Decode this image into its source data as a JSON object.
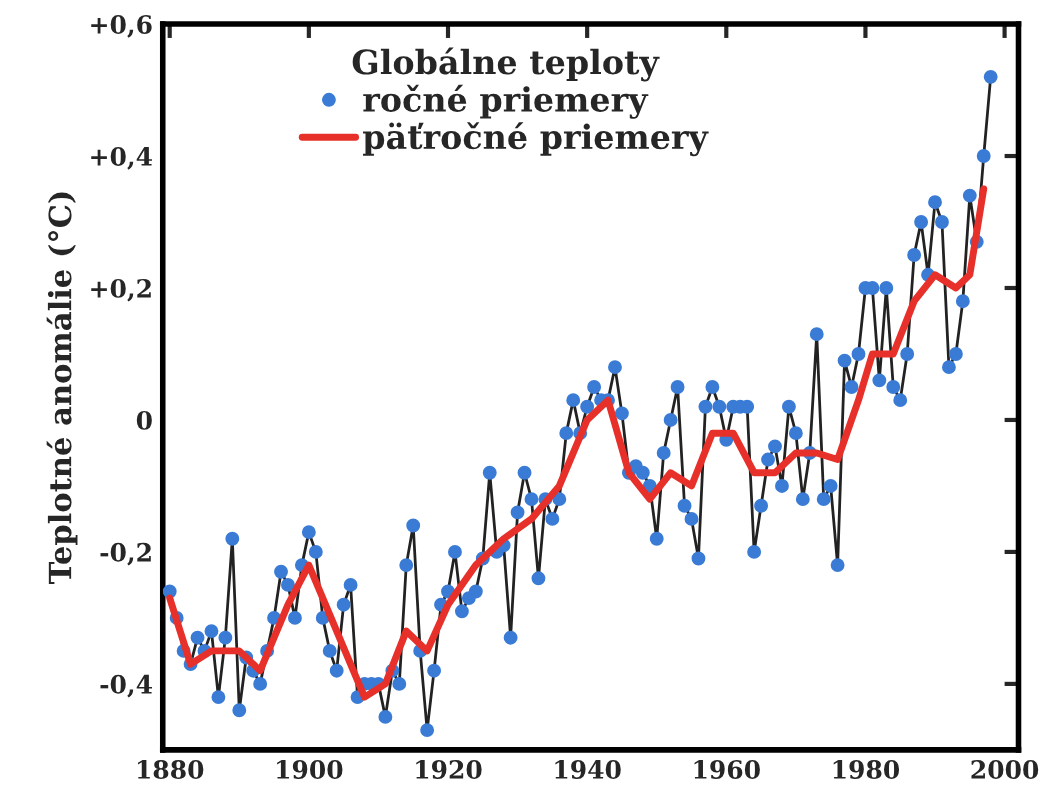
{
  "chart_data": {
    "type": "line",
    "legend_title": "Globálne teploty",
    "ylabel": "Teplotné anomálie (°C)",
    "xlim": [
      1879,
      2002
    ],
    "xticks": [
      1880,
      1900,
      1920,
      1940,
      1960,
      1980,
      2000
    ],
    "ylim": [
      -0.5,
      0.6
    ],
    "yticks": [
      {
        "value": 0.6,
        "label": "+0,6"
      },
      {
        "value": 0.4,
        "label": "+0,4"
      },
      {
        "value": 0.2,
        "label": "+0,2"
      },
      0,
      {
        "value": -0.2,
        "label": "-0,2"
      },
      {
        "value": -0.4,
        "label": "-0,4"
      }
    ],
    "grid": false,
    "legend": "top",
    "series": [
      {
        "name": "ročné priemery",
        "marker": "circle",
        "color": "#3a7bd5",
        "x": [
          1880,
          1881,
          1882,
          1883,
          1884,
          1885,
          1886,
          1887,
          1888,
          1889,
          1890,
          1891,
          1892,
          1893,
          1894,
          1895,
          1896,
          1897,
          1898,
          1899,
          1900,
          1901,
          1902,
          1903,
          1904,
          1905,
          1906,
          1907,
          1908,
          1909,
          1910,
          1911,
          1912,
          1913,
          1914,
          1915,
          1916,
          1917,
          1918,
          1919,
          1920,
          1921,
          1922,
          1923,
          1924,
          1925,
          1926,
          1927,
          1928,
          1929,
          1930,
          1931,
          1932,
          1933,
          1934,
          1935,
          1936,
          1937,
          1938,
          1939,
          1940,
          1941,
          1942,
          1943,
          1944,
          1945,
          1946,
          1947,
          1948,
          1949,
          1950,
          1951,
          1952,
          1953,
          1954,
          1955,
          1956,
          1957,
          1958,
          1959,
          1960,
          1961,
          1962,
          1963,
          1964,
          1965,
          1966,
          1967,
          1968,
          1969,
          1970,
          1971,
          1972,
          1973,
          1974,
          1975,
          1976,
          1977,
          1978,
          1979,
          1980,
          1981,
          1982,
          1983,
          1984,
          1985,
          1986,
          1987,
          1988,
          1989,
          1990,
          1991,
          1992,
          1993,
          1994,
          1995,
          1996,
          1997,
          1998
        ],
        "values": [
          -0.26,
          -0.3,
          -0.35,
          -0.37,
          -0.33,
          -0.35,
          -0.32,
          -0.42,
          -0.33,
          -0.18,
          -0.44,
          -0.36,
          -0.38,
          -0.4,
          -0.35,
          -0.3,
          -0.23,
          -0.25,
          -0.3,
          -0.22,
          -0.17,
          -0.2,
          -0.3,
          -0.35,
          -0.38,
          -0.28,
          -0.25,
          -0.42,
          -0.4,
          -0.4,
          -0.4,
          -0.45,
          -0.38,
          -0.4,
          -0.22,
          -0.16,
          -0.35,
          -0.47,
          -0.38,
          -0.28,
          -0.26,
          -0.2,
          -0.29,
          -0.27,
          -0.26,
          -0.21,
          -0.08,
          -0.2,
          -0.19,
          -0.33,
          -0.14,
          -0.08,
          -0.12,
          -0.24,
          -0.12,
          -0.15,
          -0.12,
          -0.02,
          0.03,
          -0.02,
          0.02,
          0.05,
          0.03,
          0.03,
          0.08,
          0.01,
          -0.08,
          -0.07,
          -0.08,
          -0.1,
          -0.18,
          -0.05,
          0.0,
          0.05,
          -0.13,
          -0.15,
          -0.21,
          0.02,
          0.05,
          0.02,
          -0.03,
          0.02,
          0.02,
          0.02,
          -0.2,
          -0.13,
          -0.06,
          -0.04,
          -0.1,
          0.02,
          -0.02,
          -0.12,
          -0.05,
          0.13,
          -0.12,
          -0.1,
          -0.22,
          0.09,
          0.05,
          0.1,
          0.2,
          0.2,
          0.06,
          0.2,
          0.05,
          0.03,
          0.1,
          0.25,
          0.3,
          0.22,
          0.33,
          0.3,
          0.08,
          0.1,
          0.18,
          0.34,
          0.27,
          0.4,
          0.52
        ]
      },
      {
        "name": "päťročné priemery",
        "marker": "none",
        "color": "#e8302a",
        "x": [
          1880,
          1883,
          1886,
          1890,
          1893,
          1897,
          1900,
          1904,
          1908,
          1911,
          1914,
          1917,
          1920,
          1924,
          1928,
          1932,
          1936,
          1940,
          1943,
          1946,
          1949,
          1952,
          1955,
          1958,
          1961,
          1964,
          1967,
          1970,
          1973,
          1976,
          1979,
          1981,
          1984,
          1987,
          1990,
          1993,
          1995,
          1997
        ],
        "values": [
          -0.27,
          -0.37,
          -0.35,
          -0.35,
          -0.38,
          -0.28,
          -0.22,
          -0.32,
          -0.42,
          -0.4,
          -0.32,
          -0.35,
          -0.28,
          -0.22,
          -0.18,
          -0.15,
          -0.1,
          0.0,
          0.03,
          -0.08,
          -0.12,
          -0.08,
          -0.1,
          -0.02,
          -0.02,
          -0.08,
          -0.08,
          -0.05,
          -0.05,
          -0.06,
          0.03,
          0.1,
          0.1,
          0.18,
          0.22,
          0.2,
          0.22,
          0.35
        ]
      }
    ]
  }
}
